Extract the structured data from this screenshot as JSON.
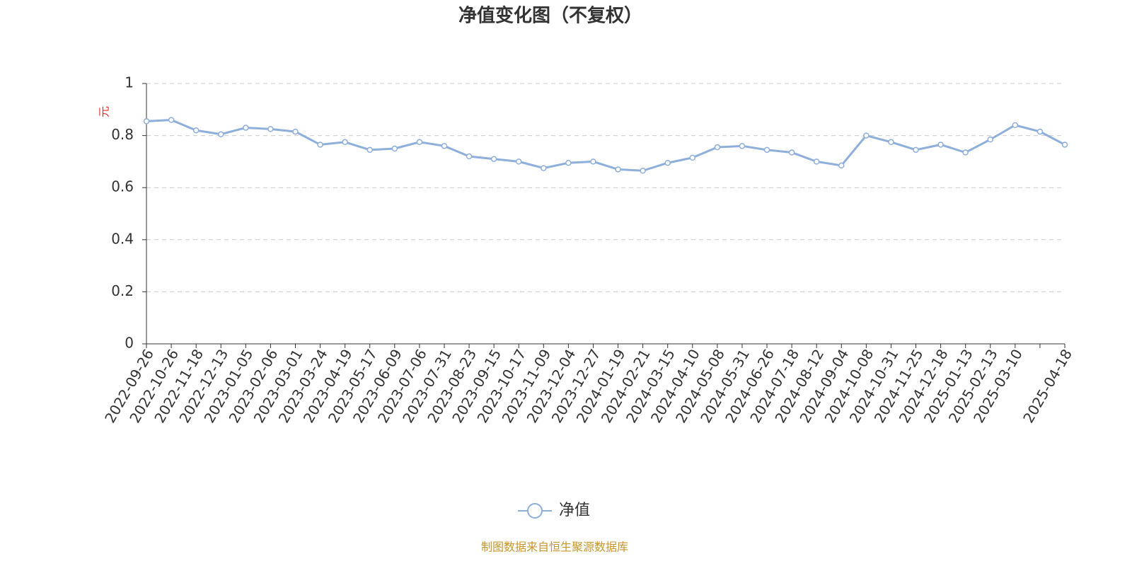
{
  "chart_data": {
    "type": "line",
    "title": "净值变化图（不复权）",
    "y_label": "元",
    "categories": [
      "2022-09-26",
      "2022-10-26",
      "2022-11-18",
      "2022-12-13",
      "2023-01-05",
      "2023-02-06",
      "2023-03-01",
      "2023-03-24",
      "2023-04-19",
      "2023-05-17",
      "2023-06-09",
      "2023-07-06",
      "2023-07-31",
      "2023-08-23",
      "2023-09-15",
      "2023-10-17",
      "2023-11-09",
      "2023-12-04",
      "2023-12-27",
      "2024-01-19",
      "2024-02-21",
      "2024-03-15",
      "2024-04-10",
      "2024-05-08",
      "2024-05-31",
      "2024-06-26",
      "2024-07-18",
      "2024-08-12",
      "2024-09-04",
      "2024-10-08",
      "2024-10-31",
      "2024-11-25",
      "2024-12-18",
      "2025-01-13",
      "2025-02-13",
      "2025-03-10",
      null,
      "2025-04-18"
    ],
    "series": [
      {
        "name": "净值",
        "color": "#8eaedc",
        "values": [
          0.855,
          0.86,
          0.82,
          0.805,
          0.83,
          0.825,
          0.815,
          0.765,
          0.775,
          0.745,
          0.75,
          0.775,
          0.76,
          0.72,
          0.71,
          0.7,
          0.675,
          0.695,
          0.7,
          0.67,
          0.665,
          0.695,
          0.715,
          0.755,
          0.76,
          0.745,
          0.735,
          0.7,
          0.685,
          0.8,
          0.775,
          0.745,
          0.765,
          0.735,
          0.785,
          0.84,
          0.815,
          0.765
        ]
      }
    ],
    "ylim": [
      0,
      1
    ],
    "yticks": [
      0,
      0.2,
      0.4,
      0.6,
      0.8,
      1
    ],
    "grid": true,
    "source": "制图数据来自恒生聚源数据库"
  }
}
